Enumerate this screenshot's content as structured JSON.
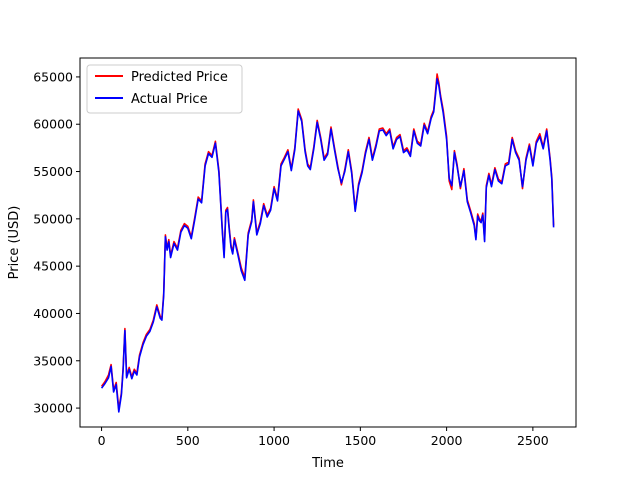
{
  "chart_data": {
    "type": "line",
    "title": "",
    "xlabel": "Time",
    "ylabel": "Price (USD)",
    "xlim": [
      -125,
      2750
    ],
    "ylim": [
      28000,
      67000
    ],
    "xticks": [
      0,
      500,
      1000,
      1500,
      2000,
      2500
    ],
    "yticks": [
      30000,
      35000,
      40000,
      45000,
      50000,
      55000,
      60000,
      65000
    ],
    "grid": false,
    "legend_position": "top-left",
    "series": [
      {
        "name": "Predicted Price",
        "color": "#ff0000",
        "x": [
          0,
          20,
          40,
          55,
          70,
          85,
          100,
          115,
          125,
          135,
          145,
          160,
          175,
          190,
          205,
          220,
          240,
          260,
          280,
          300,
          320,
          340,
          350,
          360,
          370,
          380,
          390,
          400,
          420,
          440,
          460,
          480,
          500,
          520,
          540,
          560,
          580,
          600,
          620,
          640,
          660,
          680,
          700,
          710,
          720,
          730,
          740,
          750,
          760,
          770,
          790,
          810,
          830,
          850,
          870,
          880,
          900,
          920,
          940,
          960,
          980,
          1000,
          1020,
          1040,
          1060,
          1080,
          1100,
          1120,
          1140,
          1160,
          1180,
          1195,
          1210,
          1230,
          1250,
          1270,
          1290,
          1310,
          1330,
          1350,
          1370,
          1390,
          1410,
          1430,
          1450,
          1470,
          1490,
          1510,
          1530,
          1550,
          1570,
          1590,
          1610,
          1630,
          1650,
          1670,
          1690,
          1710,
          1730,
          1750,
          1770,
          1790,
          1810,
          1830,
          1850,
          1870,
          1890,
          1910,
          1925,
          1935,
          1945,
          1955,
          1965,
          1980,
          2000,
          2015,
          2030,
          2045,
          2060,
          2080,
          2100,
          2120,
          2140,
          2160,
          2170,
          2180,
          2190,
          2200,
          2210,
          2220,
          2230,
          2245,
          2260,
          2280,
          2300,
          2320,
          2340,
          2360,
          2380,
          2400,
          2420,
          2440,
          2460,
          2480,
          2500,
          2520,
          2540,
          2560,
          2580,
          2600,
          2610,
          2620
        ],
        "values": [
          32300,
          32800,
          33500,
          34600,
          31900,
          32700,
          29900,
          31600,
          34200,
          38400,
          33400,
          34300,
          33300,
          34100,
          33700,
          35600,
          36900,
          37800,
          38300,
          39300,
          40900,
          39700,
          39500,
          42100,
          48300,
          46900,
          47800,
          46100,
          47600,
          46900,
          48800,
          49500,
          49200,
          48100,
          50100,
          52300,
          51900,
          55800,
          57100,
          56700,
          58200,
          55100,
          48900,
          46200,
          50900,
          51200,
          49100,
          47200,
          46500,
          48000,
          46400,
          44800,
          43800,
          48500,
          49900,
          52000,
          48500,
          49700,
          51600,
          50400,
          51100,
          53400,
          52100,
          55800,
          56500,
          57300,
          55300,
          57500,
          61600,
          60500,
          57300,
          55800,
          55400,
          57600,
          60400,
          58600,
          56400,
          57000,
          59700,
          57500,
          55500,
          53600,
          55200,
          57300,
          55000,
          51000,
          53700,
          55100,
          57100,
          58600,
          56400,
          57800,
          59500,
          59600,
          59000,
          59500,
          57600,
          58600,
          58900,
          57200,
          57500,
          56800,
          59500,
          58200,
          57900,
          60100,
          59200,
          60800,
          61500,
          63300,
          65300,
          64400,
          63000,
          61500,
          58700,
          54000,
          53100,
          57200,
          55800,
          53200,
          55300,
          52000,
          50800,
          49500,
          48000,
          50500,
          50000,
          49800,
          50600,
          47800,
          53500,
          54800,
          53600,
          55400,
          54200,
          53900,
          55800,
          56000,
          58600,
          57200,
          56400,
          53200,
          56400,
          57900,
          55800,
          58200,
          59000,
          57600,
          59500,
          56400,
          54400,
          49300
        ]
      },
      {
        "name": "Actual Price",
        "color": "#0000ff",
        "x": [
          0,
          20,
          40,
          55,
          70,
          85,
          100,
          115,
          125,
          135,
          145,
          160,
          175,
          190,
          205,
          220,
          240,
          260,
          280,
          300,
          320,
          340,
          350,
          360,
          370,
          380,
          390,
          400,
          420,
          440,
          460,
          480,
          500,
          520,
          540,
          560,
          580,
          600,
          620,
          640,
          660,
          680,
          700,
          710,
          720,
          730,
          740,
          750,
          760,
          770,
          790,
          810,
          830,
          850,
          870,
          880,
          900,
          920,
          940,
          960,
          980,
          1000,
          1020,
          1040,
          1060,
          1080,
          1100,
          1120,
          1140,
          1160,
          1180,
          1195,
          1210,
          1230,
          1250,
          1270,
          1290,
          1310,
          1330,
          1350,
          1370,
          1390,
          1410,
          1430,
          1450,
          1470,
          1490,
          1510,
          1530,
          1550,
          1570,
          1590,
          1610,
          1630,
          1650,
          1670,
          1690,
          1710,
          1730,
          1750,
          1770,
          1790,
          1810,
          1830,
          1850,
          1870,
          1890,
          1910,
          1925,
          1935,
          1945,
          1955,
          1965,
          1980,
          2000,
          2015,
          2030,
          2045,
          2060,
          2080,
          2100,
          2120,
          2140,
          2160,
          2170,
          2180,
          2190,
          2200,
          2210,
          2220,
          2230,
          2245,
          2260,
          2280,
          2300,
          2320,
          2340,
          2360,
          2380,
          2400,
          2420,
          2440,
          2460,
          2480,
          2500,
          2520,
          2540,
          2560,
          2580,
          2600,
          2610,
          2620
        ],
        "values": [
          32100,
          32600,
          33200,
          34400,
          31700,
          32500,
          29600,
          31400,
          34000,
          38200,
          33200,
          34100,
          33100,
          33900,
          33500,
          35400,
          36700,
          37600,
          38100,
          39100,
          40700,
          39500,
          39300,
          41900,
          48100,
          46700,
          47600,
          45900,
          47400,
          46700,
          48600,
          49300,
          49000,
          47900,
          49900,
          52100,
          51700,
          55600,
          56900,
          56500,
          58000,
          54900,
          48700,
          45900,
          50700,
          51000,
          48900,
          47000,
          46300,
          47800,
          46200,
          44500,
          43500,
          48300,
          49700,
          51800,
          48300,
          49500,
          51400,
          50200,
          50900,
          53200,
          51900,
          55600,
          56300,
          57100,
          55100,
          57300,
          61400,
          60300,
          57100,
          55600,
          55200,
          57400,
          60200,
          58400,
          56200,
          56800,
          59500,
          57300,
          55300,
          53800,
          55000,
          57100,
          54800,
          50800,
          53500,
          54900,
          56900,
          58400,
          56200,
          57600,
          59300,
          59400,
          58800,
          59300,
          57400,
          58400,
          58700,
          57000,
          57300,
          56600,
          59300,
          58000,
          57700,
          59900,
          59000,
          60600,
          61300,
          63000,
          64800,
          64100,
          62800,
          61200,
          58400,
          54300,
          53500,
          57000,
          55600,
          53400,
          55100,
          51800,
          50600,
          49300,
          47800,
          50300,
          49800,
          49600,
          50400,
          47600,
          53300,
          54600,
          53400,
          55200,
          54000,
          53700,
          55600,
          55800,
          58400,
          57000,
          56200,
          53400,
          56200,
          57700,
          55600,
          58000,
          58700,
          57400,
          59300,
          56200,
          54200,
          49100
        ]
      }
    ]
  }
}
